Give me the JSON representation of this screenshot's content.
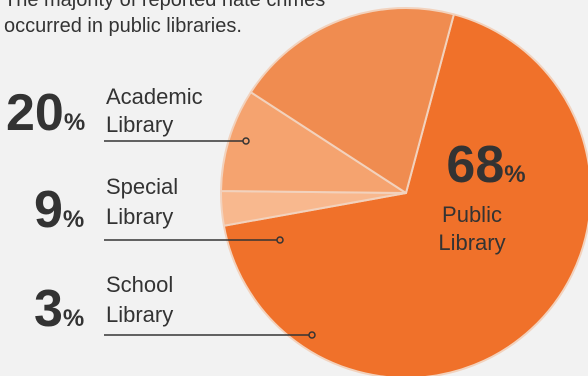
{
  "caption": {
    "line1": "The majority of reported hate crimes",
    "line2": "occurred in public libraries."
  },
  "chart_data": {
    "type": "pie",
    "title": "",
    "unit": "%",
    "slices": [
      {
        "category_line1": "Public",
        "category_line2": "Library",
        "value": 68,
        "value_label": "68",
        "color": "#f0712a"
      },
      {
        "category_line1": "School",
        "category_line2": "Library",
        "value": 3,
        "value_label": "3",
        "color": "#f8b88e"
      },
      {
        "category_line1": "Special",
        "category_line2": "Library",
        "value": 9,
        "value_label": "9",
        "color": "#f5a36f"
      },
      {
        "category_line1": "Academic",
        "category_line2": "Library",
        "value": 20,
        "value_label": "20",
        "color": "#f08c50"
      }
    ],
    "start_angle_deg": 15,
    "slice_border_color": "#f2d2bd",
    "leader_line_color": "#333333"
  }
}
